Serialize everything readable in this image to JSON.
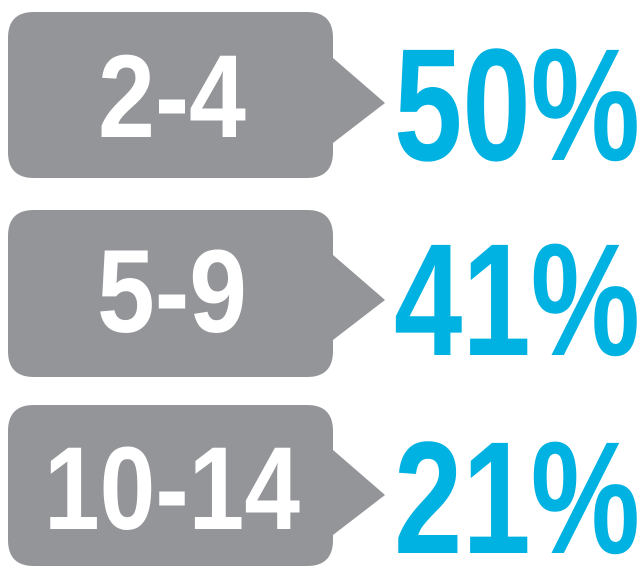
{
  "items": [
    {
      "label": "2-4",
      "value": "50%"
    },
    {
      "label": "5-9",
      "value": "41%"
    },
    {
      "label": "10-14",
      "value": "21%"
    }
  ]
}
